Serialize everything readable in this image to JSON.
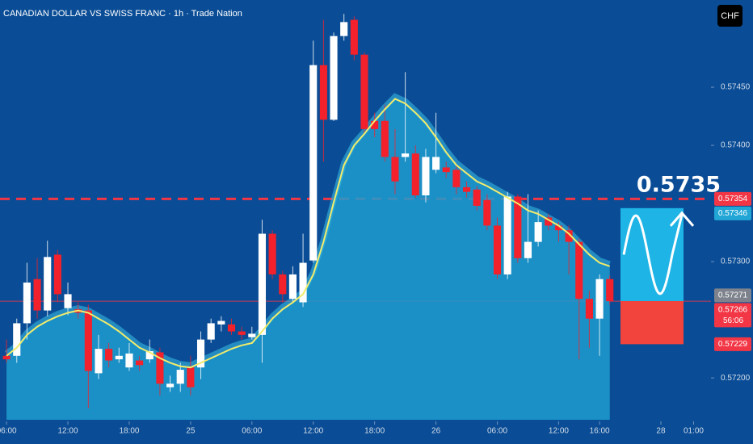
{
  "chart_data": {
    "type": "candlestick",
    "title": "CANADIAN DOLLAR VS SWISS FRANC · 1h · Trade Nation",
    "currency": "CHF",
    "up_color": "#ffffff",
    "down_color": "#f2212c",
    "open": [
      0.57219,
      0.57219,
      0.57247,
      0.57285,
      0.57258,
      0.57306,
      0.5726,
      0.57259,
      0.57258,
      0.57204,
      0.57225,
      0.57216,
      0.57209,
      0.57215,
      0.57216,
      0.57222,
      0.57192,
      0.57195,
      0.57209,
      0.57209,
      0.57233,
      0.57246,
      0.57246,
      0.5724,
      0.57235,
      0.57237,
      0.57324,
      0.57289,
      0.57268,
      0.57265,
      0.57301,
      0.57469,
      0.57422,
      0.57494,
      0.57508,
      0.57478,
      0.57421,
      0.57421,
      0.5739,
      0.5739,
      0.57393,
      0.57357,
      0.57379,
      0.57381,
      0.57379,
      0.57364,
      0.57362,
      0.57353,
      0.57331,
      0.57289,
      0.57356,
      0.57303,
      0.57317,
      0.57338,
      0.57331,
      0.57327,
      0.57317,
      0.57268,
      0.57251,
      0.57285
    ],
    "high": [
      0.57233,
      0.57251,
      0.57299,
      0.57303,
      0.57318,
      0.5731,
      0.57282,
      0.57265,
      0.57263,
      0.57237,
      0.5723,
      0.57226,
      0.5723,
      0.57219,
      0.57233,
      0.57226,
      0.57202,
      0.57213,
      0.57219,
      0.5724,
      0.57251,
      0.57253,
      0.57251,
      0.57244,
      0.57244,
      0.57336,
      0.57327,
      0.57292,
      0.57296,
      0.57324,
      0.5749,
      0.57508,
      0.57497,
      0.57513,
      0.57511,
      0.5748,
      0.57428,
      0.57435,
      0.57414,
      0.57463,
      0.574,
      0.57397,
      0.57428,
      0.57386,
      0.57383,
      0.57369,
      0.57365,
      0.57358,
      0.57338,
      0.5736,
      0.57358,
      0.57358,
      0.57344,
      0.57341,
      0.57334,
      0.57331,
      0.5732,
      0.57275,
      0.57289,
      0.57288
    ],
    "low": [
      0.57213,
      0.57213,
      0.57233,
      0.57251,
      0.57253,
      0.57265,
      0.57254,
      0.57251,
      0.57174,
      0.57199,
      0.57209,
      0.57213,
      0.57206,
      0.57206,
      0.57213,
      0.57185,
      0.57188,
      0.57188,
      0.57185,
      0.57199,
      0.5723,
      0.5724,
      0.57237,
      0.57233,
      0.57233,
      0.57213,
      0.57285,
      0.57265,
      0.57265,
      0.57261,
      0.57299,
      0.57386,
      0.57421,
      0.5749,
      0.57473,
      0.5741,
      0.57407,
      0.57386,
      0.57358,
      0.57386,
      0.57355,
      0.57351,
      0.57376,
      0.57372,
      0.57358,
      0.57355,
      0.57344,
      0.57327,
      0.57285,
      0.57285,
      0.57299,
      0.57299,
      0.57313,
      0.57327,
      0.57317,
      0.57289,
      0.57216,
      0.57226,
      0.57219,
      0.57263
    ],
    "close": [
      0.57216,
      0.57247,
      0.57282,
      0.57258,
      0.57304,
      0.57272,
      0.57272,
      0.57256,
      0.57206,
      0.57225,
      0.57215,
      0.57219,
      0.57221,
      0.57211,
      0.57223,
      0.57195,
      0.57195,
      0.57207,
      0.57192,
      0.57233,
      0.57247,
      0.57249,
      0.5724,
      0.57237,
      0.57238,
      0.57324,
      0.57289,
      0.57272,
      0.57289,
      0.57299,
      0.57469,
      0.57422,
      0.57494,
      0.57506,
      0.57478,
      0.57414,
      0.57414,
      0.5739,
      0.57369,
      0.57393,
      0.57357,
      0.5739,
      0.5739,
      0.57377,
      0.57364,
      0.5736,
      0.57348,
      0.57331,
      0.57289,
      0.57356,
      0.57303,
      0.57317,
      0.57334,
      0.57331,
      0.57327,
      0.57317,
      0.57268,
      0.57251,
      0.57285,
      0.57266
    ],
    "ma": {
      "color": "#f2ec6b",
      "area_color": "#1f9ccf",
      "values": [
        0.57219,
        0.57226,
        0.57237,
        0.57244,
        0.57249,
        0.57253,
        0.57256,
        0.57258,
        0.57256,
        0.57251,
        0.57246,
        0.5724,
        0.57233,
        0.57226,
        0.57222,
        0.57217,
        0.57213,
        0.5721,
        0.57209,
        0.57213,
        0.57217,
        0.57221,
        0.57225,
        0.57228,
        0.5723,
        0.5724,
        0.57251,
        0.57259,
        0.57265,
        0.57272,
        0.57289,
        0.57317,
        0.57351,
        0.57383,
        0.574,
        0.5741,
        0.57421,
        0.57431,
        0.5744,
        0.57436,
        0.57428,
        0.57419,
        0.57407,
        0.57394,
        0.57383,
        0.57376,
        0.57369,
        0.57365,
        0.5736,
        0.57355,
        0.5735,
        0.57344,
        0.57341,
        0.57336,
        0.57331,
        0.57324,
        0.57315,
        0.57306,
        0.57299,
        0.57296
      ]
    },
    "xlim": [
      -0.64,
      68.9
    ],
    "xticks": [
      {
        "value": 0,
        "label": "06:00"
      },
      {
        "value": 6,
        "label": "12:00"
      },
      {
        "value": 12,
        "label": "18:00"
      },
      {
        "value": 18,
        "label": "25"
      },
      {
        "value": 24,
        "label": "06:00"
      },
      {
        "value": 30,
        "label": "12:00"
      },
      {
        "value": 36,
        "label": "18:00"
      },
      {
        "value": 42,
        "label": "26"
      },
      {
        "value": 48,
        "label": "06:00"
      },
      {
        "value": 54,
        "label": "12:00"
      },
      {
        "value": 58,
        "label": "16:00"
      },
      {
        "value": 64,
        "label": "28"
      },
      {
        "value": 67.2,
        "label": "01:00"
      }
    ],
    "ylim": [
      0.57164,
      0.57525
    ],
    "yticks": [
      {
        "value": 0.572,
        "label": "0.57200"
      },
      {
        "value": 0.573,
        "label": "0.57300"
      },
      {
        "value": 0.574,
        "label": "0.57400"
      },
      {
        "value": 0.5745,
        "label": "0.57450"
      }
    ],
    "price_labels": [
      {
        "value": 0.57354,
        "color": "#f23645",
        "line": "dashed"
      },
      {
        "value": 0.57346,
        "color": "#22a6d6"
      },
      {
        "value": 0.57271,
        "color": "#7d828c"
      },
      {
        "value": 0.57266,
        "color": "#f23645",
        "countdown": "56:06",
        "line": "solid"
      },
      {
        "value": 0.57229,
        "color": "#f23645"
      }
    ],
    "target": 0.5735,
    "projection": {
      "up": {
        "from": 0.57266,
        "to": 0.57346,
        "color": "#1eb4e6"
      },
      "down": {
        "from": 0.57229,
        "to": 0.57266,
        "color": "#f2443c"
      }
    }
  }
}
